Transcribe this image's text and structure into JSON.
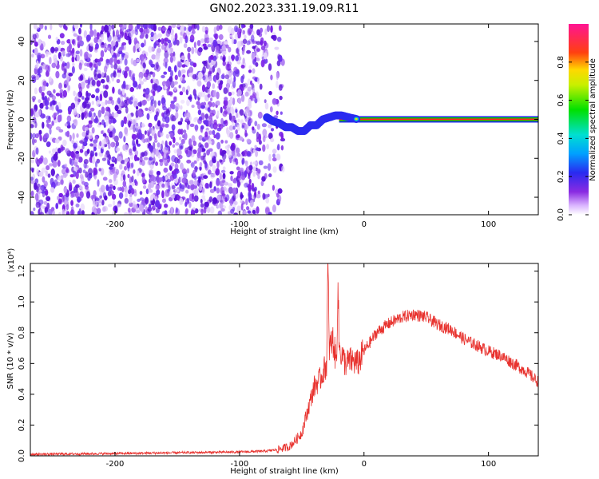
{
  "title": "GN02.2023.331.19.09.R11",
  "colors": {
    "snr_line": "#e8332f",
    "spectrum_purple": "#7a1fe6",
    "frame": "#000000"
  },
  "chart_data": [
    {
      "type": "heatmap",
      "xlabel": "Height of straight line (km)",
      "ylabel": "Frequency (Hz)",
      "xlim": [
        -268,
        140
      ],
      "ylim": [
        -49,
        49
      ],
      "xticks": [
        -200,
        -100,
        0,
        100
      ],
      "xtick_labels": [
        "-200",
        "-100",
        "0",
        "100"
      ],
      "yticks": [
        -40,
        -20,
        0,
        20,
        40
      ],
      "ytick_labels": [
        "-40",
        "-20",
        "0",
        "20",
        "40"
      ],
      "noise_region_x": [
        -268,
        -65
      ],
      "signal_track": {
        "x": [
          -78,
          -73,
          -68,
          -63,
          -58,
          -53,
          -48,
          -43,
          -38,
          -33,
          -28,
          -23,
          -18,
          -12,
          -5
        ],
        "y": [
          1,
          -1,
          -2,
          -4,
          -4,
          -6,
          -6,
          -3,
          -3,
          0,
          1,
          2,
          2,
          1,
          0
        ]
      },
      "carrier_line": {
        "x": [
          -20,
          140
        ],
        "y": 0
      },
      "colorbar": {
        "label": "Normalized spectral amplitude",
        "range": [
          0,
          1
        ],
        "ticks": [
          0,
          0.2,
          0.4,
          0.6,
          0.8
        ],
        "tick_labels": [
          "0.0",
          "0.2",
          "0.4",
          "0.6",
          "0.8"
        ],
        "colormap": "rainbow (white-purple-blue-cyan-green-yellow-red-pink)"
      },
      "grid": false
    },
    {
      "type": "line",
      "xlabel": "Height of straight line (km)",
      "ylabel": "SNR (10 * v/v)",
      "y_multiplier": "(x10⁴)",
      "xlim": [
        -268,
        140
      ],
      "ylim": [
        0,
        1.25
      ],
      "xticks": [
        -200,
        -100,
        0,
        100
      ],
      "xtick_labels": [
        "-200",
        "-100",
        "0",
        "100"
      ],
      "yticks": [
        0,
        0.2,
        0.4,
        0.6,
        0.8,
        1.0,
        1.2
      ],
      "ytick_labels": [
        "0.0",
        "0.2",
        "0.4",
        "0.6",
        "0.8",
        "1.0",
        "1.2"
      ],
      "series": [
        {
          "x": [
            -268,
            -200,
            -150,
            -100,
            -80,
            -70,
            -60,
            -55,
            -50,
            -45,
            -40,
            -35,
            -30,
            -29,
            -28,
            -25,
            -22,
            -21,
            -20,
            -15,
            -10,
            -5,
            0,
            10,
            20,
            30,
            40,
            50,
            60,
            70,
            80,
            90,
            100,
            110,
            120,
            130,
            140
          ],
          "y": [
            0.01,
            0.015,
            0.02,
            0.025,
            0.03,
            0.04,
            0.06,
            0.1,
            0.15,
            0.3,
            0.45,
            0.5,
            0.6,
            1.25,
            0.7,
            0.75,
            0.6,
            1.18,
            0.7,
            0.6,
            0.62,
            0.6,
            0.68,
            0.8,
            0.86,
            0.9,
            0.92,
            0.9,
            0.85,
            0.82,
            0.76,
            0.72,
            0.68,
            0.65,
            0.6,
            0.55,
            0.48
          ]
        }
      ],
      "grid": false
    }
  ]
}
